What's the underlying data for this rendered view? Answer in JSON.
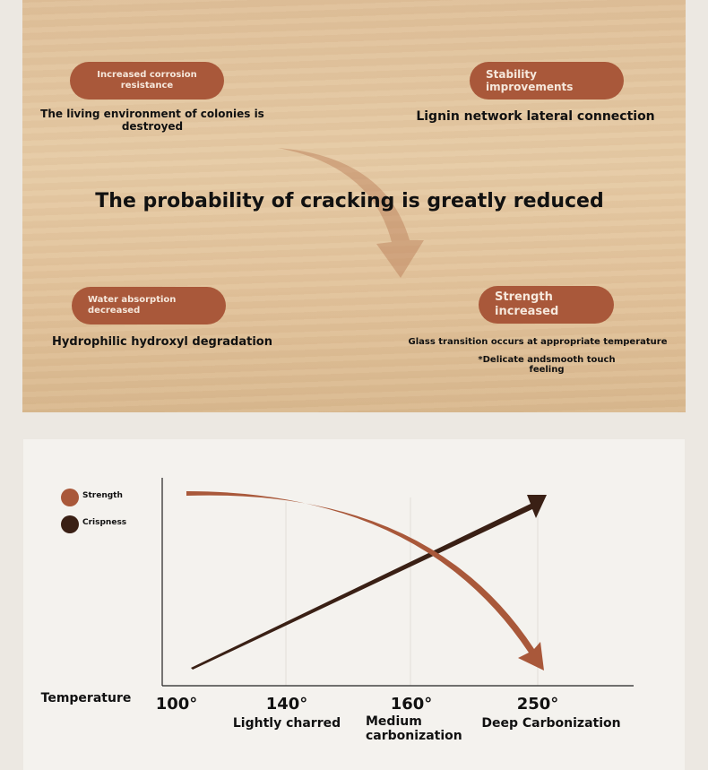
{
  "top": {
    "corrosion": {
      "badge": "Increased corrosion resistance",
      "text": "The living environment of colonies is destroyed"
    },
    "stability": {
      "badge": "Stability improvements",
      "text": "Lignin network lateral connection"
    },
    "headline": "The probability of cracking is greatly reduced",
    "water": {
      "badge": "Water absorption decreased",
      "text": "Hydrophilic hydroxyl degradation"
    },
    "strength": {
      "badge": "Strength increased",
      "text": "Glass transition occurs at appropriate temperature",
      "note": "*Delicate andsmooth touch feeling"
    }
  },
  "chart": {
    "legend": [
      {
        "label": "Strength",
        "color": "#a9583a"
      },
      {
        "label": "Crispness",
        "color": "#3a2015"
      }
    ],
    "axis_label": "Temperature",
    "ticks": [
      "100°",
      "140°",
      "160°",
      "250°"
    ],
    "stages": [
      "Lightly charred",
      "Medium carbonization",
      "Deep Carbonization"
    ]
  }
}
